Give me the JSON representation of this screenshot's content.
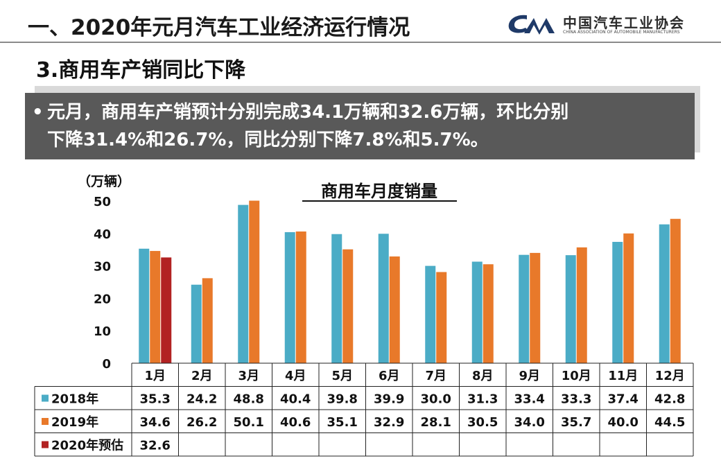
{
  "header": {
    "title": "一、2020年元月汽车工业经济运行情况",
    "logo_cn": "中国汽车工业协会",
    "logo_en": "CHINA ASSOCIATION OF AUTOMOBILE MANUFACTURERS"
  },
  "subtitle": "3.商用车产销同比下降",
  "callout": {
    "line1": "元月，商用车产销预计分别完成34.1万辆和32.6万辆，环比分别",
    "line2": "下降31.4%和26.7%，同比分别下降7.8%和5.7%。"
  },
  "colors": {
    "s2018": "#4bacc6",
    "s2019": "#e8792a",
    "s2020": "#b22222",
    "callout_bg": "#595959"
  },
  "chart_data": {
    "type": "bar",
    "title": "商用车月度销量",
    "ylabel": "（万辆）",
    "ylim": [
      0,
      50
    ],
    "yticks": [
      "0",
      "10",
      "20",
      "30",
      "40",
      "50"
    ],
    "categories": [
      "1月",
      "2月",
      "3月",
      "4月",
      "5月",
      "6月",
      "7月",
      "8月",
      "9月",
      "10月",
      "11月",
      "12月"
    ],
    "series": [
      {
        "name": "2018年",
        "values": [
          35.3,
          24.2,
          48.8,
          40.4,
          39.8,
          39.9,
          30.0,
          31.3,
          33.4,
          33.3,
          37.4,
          42.8
        ],
        "labels": [
          "35.3",
          "24.2",
          "48.8",
          "40.4",
          "39.8",
          "39.9",
          "30.0",
          "31.3",
          "33.4",
          "33.3",
          "37.4",
          "42.8"
        ]
      },
      {
        "name": "2019年",
        "values": [
          34.6,
          26.2,
          50.1,
          40.6,
          35.1,
          32.9,
          28.1,
          30.5,
          34.0,
          35.7,
          40.0,
          44.5
        ],
        "labels": [
          "34.6",
          "26.2",
          "50.1",
          "40.6",
          "35.1",
          "32.9",
          "28.1",
          "30.5",
          "34.0",
          "35.7",
          "40.0",
          "44.5"
        ]
      },
      {
        "name": "2020年预估",
        "values": [
          32.6,
          null,
          null,
          null,
          null,
          null,
          null,
          null,
          null,
          null,
          null,
          null
        ],
        "labels": [
          "32.6",
          "",
          "",
          "",
          "",
          "",
          "",
          "",
          "",
          "",
          "",
          ""
        ]
      }
    ]
  }
}
